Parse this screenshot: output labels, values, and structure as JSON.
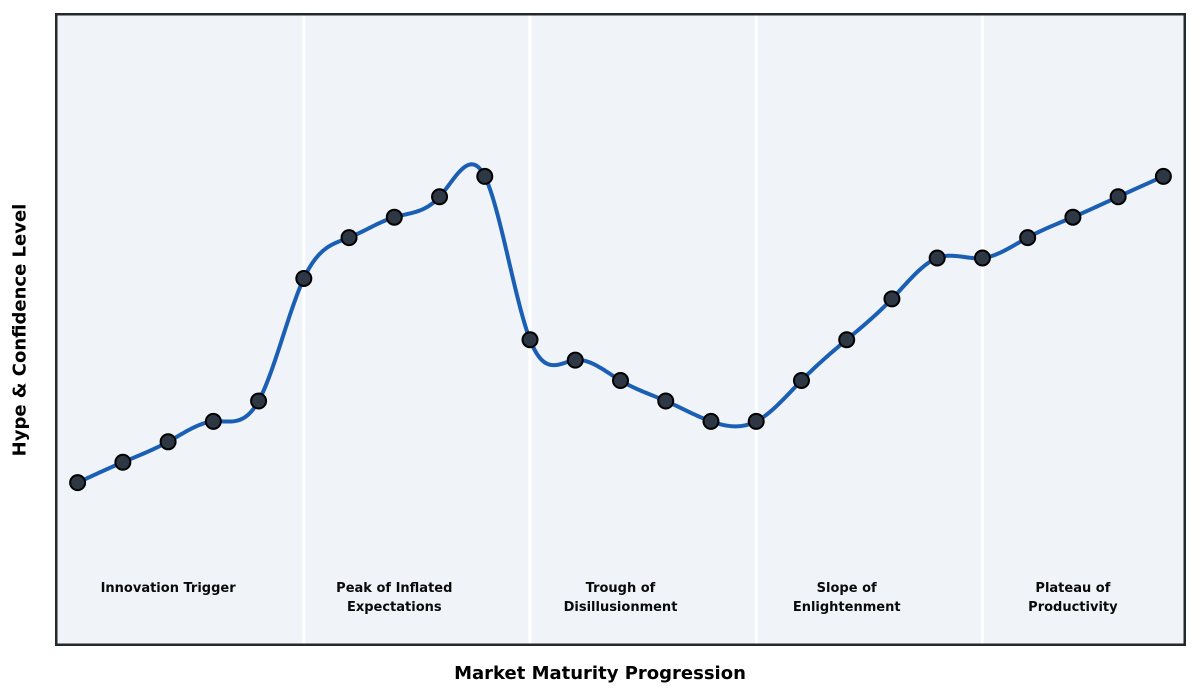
{
  "chart_data": {
    "type": "line",
    "title": "",
    "xlabel": "Market Maturity Progression",
    "ylabel": "Hype & Confidence Level",
    "x": [
      0,
      1,
      2,
      3,
      4,
      5,
      6,
      7,
      8,
      9,
      10,
      11,
      12,
      13,
      14,
      15,
      16,
      17,
      18,
      19,
      20,
      21,
      22,
      23,
      24
    ],
    "series": [
      {
        "name": "hype-confidence-curve",
        "values": [
          20,
          25,
          30,
          35,
          40,
          70,
          80,
          85,
          90,
          95,
          55,
          50,
          45,
          40,
          35,
          35,
          45,
          55,
          65,
          75,
          75,
          80,
          85,
          90,
          95
        ]
      }
    ],
    "xlim": [
      -0.5,
      24.5
    ],
    "ylim": [
      -20,
      135
    ],
    "grid": false,
    "legend": "none",
    "smooth_spline": true,
    "markers": true,
    "phase_dividers_x": [
      5,
      10,
      15,
      20
    ],
    "phase_labels": [
      {
        "lines": [
          "Innovation Trigger"
        ],
        "x": 2
      },
      {
        "lines": [
          "Peak of Inflated",
          "Expectations"
        ],
        "x": 7
      },
      {
        "lines": [
          "Trough of",
          "Disillusionment"
        ],
        "x": 12
      },
      {
        "lines": [
          "Slope of",
          "Enlightenment"
        ],
        "x": 17
      },
      {
        "lines": [
          "Plateau of",
          "Productivity"
        ],
        "x": 22
      }
    ],
    "colors": {
      "line": "#1a5fb4",
      "marker_fill": "#2e3744",
      "marker_edge": "#000000",
      "plot_bg": "#f0f4f8",
      "divider": "#ffffff",
      "frame": "#23272e",
      "phase_text": "#0a0a0a",
      "axis_text": "#000000"
    }
  }
}
